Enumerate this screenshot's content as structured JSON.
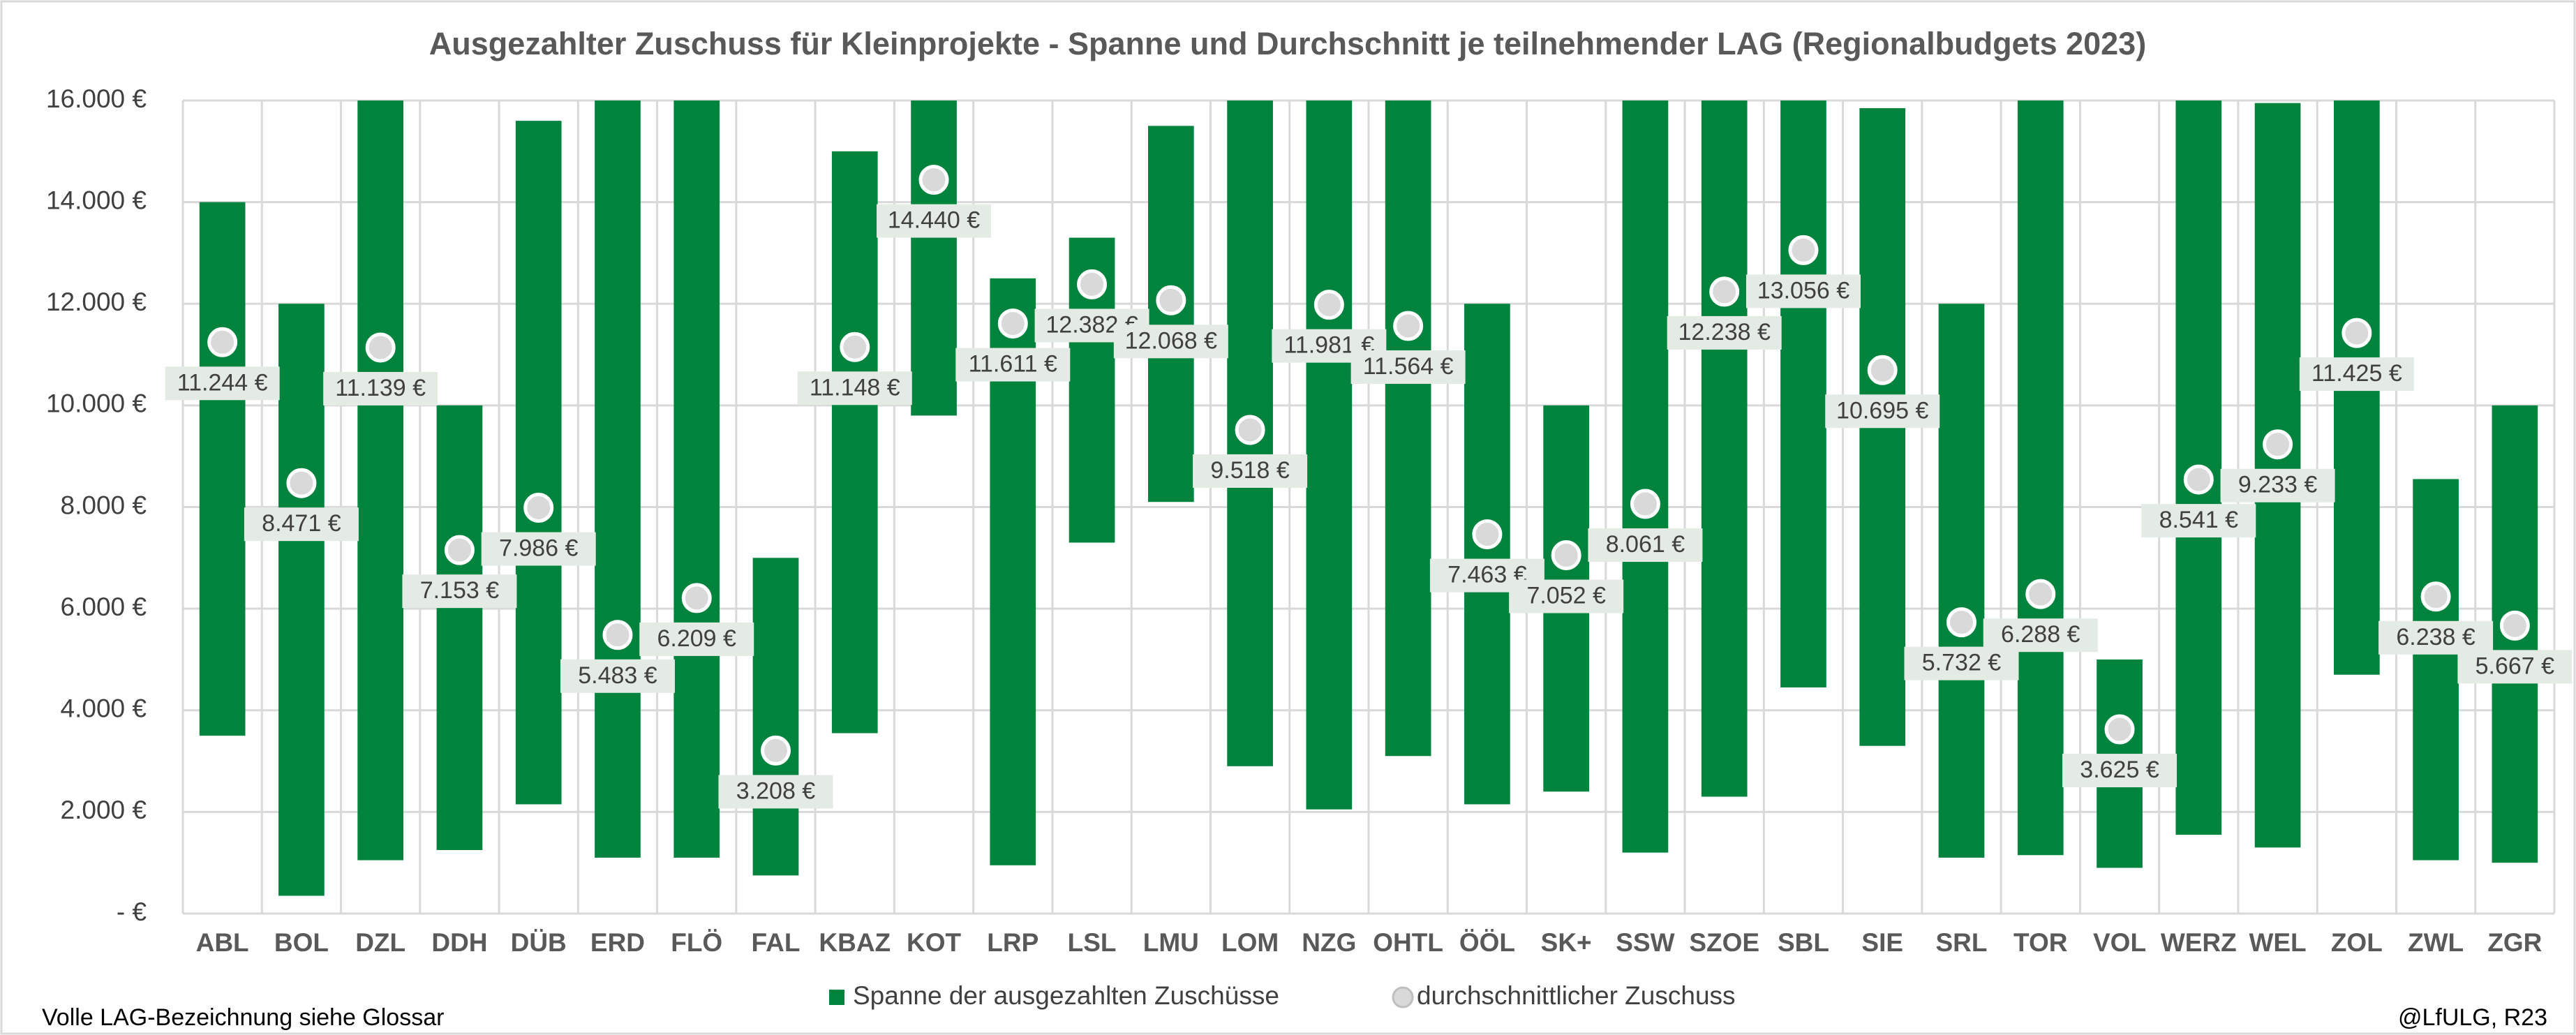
{
  "chart_data": {
    "type": "range-bar",
    "title": "Ausgezahlter Zuschuss für Kleinprojekte - Spanne und Durchschnitt je teilnehmender LAG (Regionalbudgets 2023)",
    "footnote": "Volle LAG-Bezeichnung siehe Glossar",
    "source": "@LfULG, R23",
    "categories": [
      "ABL",
      "BOL",
      "DZL",
      "DDH",
      "DÜB",
      "ERD",
      "FLÖ",
      "FAL",
      "KBAZ",
      "KOT",
      "LRP",
      "LSL",
      "LMU",
      "LOM",
      "NZG",
      "OHTL",
      "ÖÖL",
      "SK+",
      "SSW",
      "SZOE",
      "SBL",
      "SIE",
      "SRL",
      "TOR",
      "VOL",
      "WERZ",
      "WEL",
      "ZOL",
      "ZWL",
      "ZGR"
    ],
    "series": [
      {
        "name": "Spanne der ausgezahlten Zuschüsse",
        "color": "#00843d",
        "low": [
          3500,
          350,
          1050,
          1250,
          2150,
          1100,
          1100,
          750,
          3550,
          9800,
          950,
          7300,
          8100,
          2900,
          2050,
          3100,
          2150,
          2400,
          1200,
          2300,
          4450,
          3300,
          1100,
          1150,
          900,
          1550,
          1300,
          4700,
          1050,
          1000
        ],
        "values": [
          14000,
          12000,
          16000,
          10000,
          15600,
          16000,
          16000,
          7000,
          15000,
          16000,
          12500,
          13300,
          15500,
          16000,
          16000,
          16000,
          12000,
          10000,
          16000,
          16000,
          16000,
          15850,
          12000,
          16000,
          5000,
          16000,
          15950,
          16000,
          8550,
          10000
        ]
      },
      {
        "name": "durchschnittlicher Zuschuss",
        "color": "#d9d9d9",
        "values": [
          11244,
          8471,
          11139,
          7153,
          7986,
          5483,
          6209,
          3208,
          11148,
          14440,
          11611,
          12382,
          12068,
          9518,
          11981,
          11564,
          7463,
          7052,
          8061,
          12238,
          13056,
          10695,
          5732,
          6288,
          3625,
          8541,
          9233,
          11425,
          6238,
          5667
        ],
        "value_labels": [
          "11.244 €",
          "8.471 €",
          "11.139 €",
          "7.153 €",
          "7.986 €",
          "5.483 €",
          "6.209 €",
          "3.208 €",
          "11.148 €",
          "14.440 €",
          "11.611 €",
          "12.382 €",
          "12.068 €",
          "9.518 €",
          "11.981 €",
          "11.564 €",
          "7.463 €",
          "7.052 €",
          "8.061 €",
          "12.238 €",
          "13.056 €",
          "10.695 €",
          "5.732 €",
          "6.288 €",
          "3.625 €",
          "8.541 €",
          "9.233 €",
          "11.425 €",
          "6.238 €",
          "5.667 €"
        ]
      }
    ],
    "ylim": [
      0,
      16000
    ],
    "yticks": [
      {
        "value": 0,
        "label": "-  €"
      },
      {
        "value": 2000,
        "label": "2.000 €"
      },
      {
        "value": 4000,
        "label": "4.000 €"
      },
      {
        "value": 6000,
        "label": "6.000 €"
      },
      {
        "value": 8000,
        "label": "8.000 €"
      },
      {
        "value": 10000,
        "label": "10.000 €"
      },
      {
        "value": 12000,
        "label": "12.000 €"
      },
      {
        "value": 14000,
        "label": "14.000 €"
      },
      {
        "value": 16000,
        "label": "16.000 €"
      }
    ],
    "grid": true,
    "legend": "bottom"
  }
}
